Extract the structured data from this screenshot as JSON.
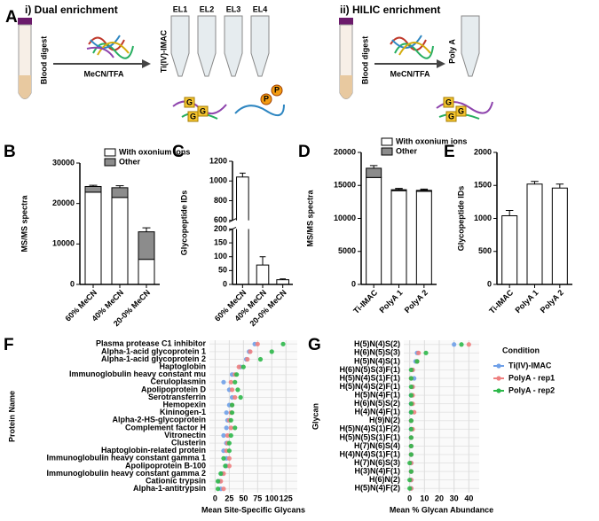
{
  "diagram": {
    "panel": "A",
    "left": {
      "title": "i) Dual enrichment",
      "sample": "Blood digest",
      "reagent": "MeCN/TFA",
      "column": "Ti(IV)-IMAC",
      "fractions": [
        "EL1",
        "EL2",
        "EL3",
        "EL4"
      ]
    },
    "right": {
      "title": "ii) HILIC enrichment",
      "sample": "Blood digest",
      "reagent": "MeCN/TFA",
      "column": "Poly A"
    },
    "glycan_tag": "G",
    "phospho_tag": "P"
  },
  "chart_data": [
    {
      "panel": "B",
      "type": "bar",
      "stacked": true,
      "ylabel": "MS/MS spectra",
      "categories": [
        "60% MeCN",
        "40% MeCN",
        "20-0% MeCN"
      ],
      "series": [
        {
          "name": "With oxonium ions",
          "color": "#ffffff",
          "values": [
            22800,
            21500,
            6200
          ],
          "errors": [
            300,
            600,
            300
          ]
        },
        {
          "name": "Other",
          "color": "#8c8c8c",
          "values": [
            1400,
            2400,
            6800
          ],
          "errors": [
            300,
            500,
            1000
          ]
        }
      ],
      "ylim": [
        0,
        30000
      ],
      "yticks": [
        0,
        10000,
        20000,
        30000
      ],
      "legend": "upper right"
    },
    {
      "panel": "C",
      "type": "bar",
      "ylabel": "Glycopeptide IDs",
      "categories": [
        "60% MeCN",
        "40% MeCN",
        "20-0% MeCN"
      ],
      "values": [
        1040,
        70,
        17
      ],
      "errors": [
        40,
        30,
        3
      ],
      "color": "#ffffff",
      "ylim": [
        0,
        1200
      ],
      "ybreak": [
        200,
        600
      ],
      "yticks": [
        0,
        50,
        100,
        150,
        200,
        600,
        800,
        1000,
        1200
      ]
    },
    {
      "panel": "D",
      "type": "bar",
      "stacked": true,
      "ylabel": "MS/MS spectra",
      "categories": [
        "Ti-IMAC",
        "PolyA 1",
        "PolyA 2"
      ],
      "series": [
        {
          "name": "With oxonium ions",
          "color": "#ffffff",
          "values": [
            16200,
            14200,
            14100
          ],
          "errors": [
            300,
            200,
            200
          ]
        },
        {
          "name": "Other",
          "color": "#8c8c8c",
          "values": [
            1400,
            150,
            150
          ],
          "errors": [
            400,
            200,
            200
          ]
        }
      ],
      "ylim": [
        0,
        20000
      ],
      "yticks": [
        0,
        5000,
        10000,
        15000,
        20000
      ],
      "legend": "upper right"
    },
    {
      "panel": "E",
      "type": "bar",
      "ylabel": "Glycopeptide IDs",
      "categories": [
        "Ti-IMAC",
        "PolyA 1",
        "PolyA 2"
      ],
      "values": [
        1040,
        1520,
        1460
      ],
      "errors": [
        80,
        40,
        60
      ],
      "color": "#ffffff",
      "ylim": [
        0,
        2000
      ],
      "yticks": [
        0,
        500,
        1000,
        1500,
        2000
      ]
    },
    {
      "panel": "F",
      "type": "dot",
      "xlabel": "Mean Site-Specific Glycans",
      "ylabel": "Protein Name",
      "categories": [
        "Plasma protease C1 inhibitor",
        "Alpha-1-acid glycoprotein 1",
        "Alpha-1-acid glycoprotein 2",
        "Haptoglobin",
        "Immunoglobulin heavy constant mu",
        "Ceruloplasmin",
        "Apolipoprotein D",
        "Serotransferrin",
        "Hemopexin",
        "Kininogen-1",
        "Alpha-2-HS-glycoprotein",
        "Complement factor H",
        "Vitronectin",
        "Clusterin",
        "Haptoglobin-related protein",
        "Immunoglobulin heavy constant gamma 1",
        "Apolipoprotein B-100",
        "Immunoglobulin heavy constant gamma 2",
        "Cationic trypsin",
        "Alpha-1-antitrypsin"
      ],
      "series": [
        {
          "color": "#6fa0e8",
          "values": [
            70,
            60,
            55,
            45,
            30,
            15,
            25,
            30,
            25,
            20,
            22,
            20,
            15,
            20,
            15,
            20,
            20,
            12,
            8,
            10
          ]
        },
        {
          "color": "#ee8080",
          "values": [
            75,
            62,
            57,
            42,
            35,
            28,
            30,
            35,
            30,
            28,
            25,
            28,
            22,
            22,
            20,
            25,
            25,
            15,
            10,
            15
          ]
        },
        {
          "color": "#2db84a",
          "values": [
            120,
            100,
            80,
            50,
            38,
            35,
            40,
            45,
            30,
            30,
            28,
            35,
            28,
            25,
            25,
            15,
            18,
            10,
            5,
            5
          ]
        }
      ],
      "xlim": [
        -10,
        145
      ],
      "xticks": [
        0,
        25,
        50,
        75,
        100,
        125
      ],
      "grid": true
    },
    {
      "panel": "G",
      "type": "dot",
      "xlabel": "Mean % Glycan Abundance",
      "ylabel": "Glycan",
      "categories": [
        "H(5)N(4)S(2)",
        "H(6)N(5)S(3)",
        "H(5)N(4)S(1)",
        "H(6)N(5)S(3)F(1)",
        "H(5)N(4)S(1)F(1)",
        "H(5)N(4)S(2)F(1)",
        "H(5)N(4)F(1)",
        "H(6)N(5)S(2)",
        "H(4)N(4)F(1)",
        "H(9)N(2)",
        "H(5)N(4)S(1)F(2)",
        "H(5)N(5)S(1)F(1)",
        "H(7)N(6)S(4)",
        "H(4)N(4)S(1)F(1)",
        "H(7)N(6)S(3)",
        "H(3)N(4)F(1)",
        "H(6)N(2)",
        "H(5)N(4)F(2)"
      ],
      "series": [
        {
          "name": "Ti(IV)-IMAC",
          "color": "#6fa0e8",
          "values": [
            30,
            5,
            4,
            2,
            3,
            2,
            1,
            1,
            1,
            1,
            1,
            1,
            1,
            1,
            1,
            1,
            1,
            1
          ]
        },
        {
          "name": "PolyA - rep1",
          "color": "#ee8080",
          "values": [
            40,
            6,
            5,
            2,
            1,
            2,
            2,
            2,
            3,
            1,
            2,
            1,
            1,
            1,
            1,
            1,
            1,
            1
          ]
        },
        {
          "name": "PolyA - rep2",
          "color": "#2db84a",
          "values": [
            35,
            11,
            5,
            1,
            1,
            1,
            1,
            1,
            1,
            1,
            1,
            1,
            1,
            1,
            0,
            1,
            0,
            0
          ]
        }
      ],
      "xlim": [
        -4,
        47
      ],
      "xticks": [
        0,
        10,
        20,
        30,
        40
      ],
      "grid": true,
      "legend_title": "Condition",
      "legend": "right"
    }
  ]
}
